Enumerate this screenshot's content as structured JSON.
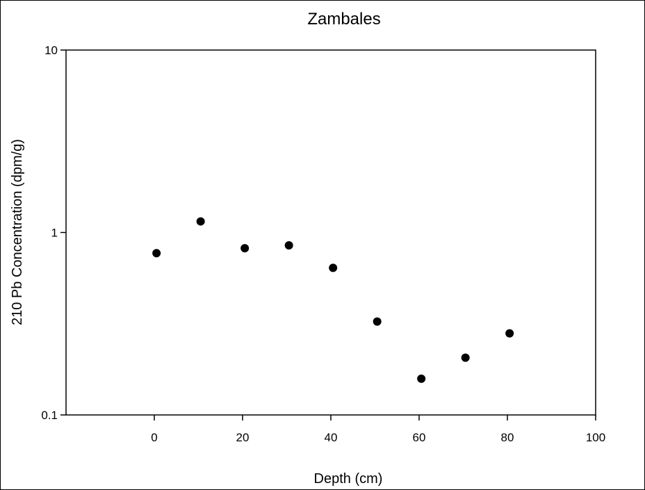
{
  "chart_data": {
    "type": "scatter",
    "title": "Zambales",
    "xlabel": "Depth (cm)",
    "ylabel": "210 Pb Concentration (dpm/g)",
    "xlim": [
      -20,
      100
    ],
    "ylim": [
      0.1,
      10
    ],
    "yscale": "log",
    "xticks": [
      0,
      20,
      40,
      60,
      80,
      100
    ],
    "xtick_labels": [
      "0",
      "20",
      "40",
      "60",
      "80",
      "100"
    ],
    "yticks": [
      0.1,
      1,
      10
    ],
    "ytick_labels": [
      "0.1",
      "1",
      "10"
    ],
    "grid": false,
    "series": [
      {
        "name": "Zambales",
        "color": "#000000",
        "x": [
          0.5,
          10.5,
          20.5,
          30.5,
          40.5,
          50.5,
          60.5,
          70.5,
          80.5
        ],
        "y": [
          0.77,
          1.15,
          0.82,
          0.85,
          0.64,
          0.325,
          0.158,
          0.206,
          0.28
        ]
      }
    ]
  }
}
